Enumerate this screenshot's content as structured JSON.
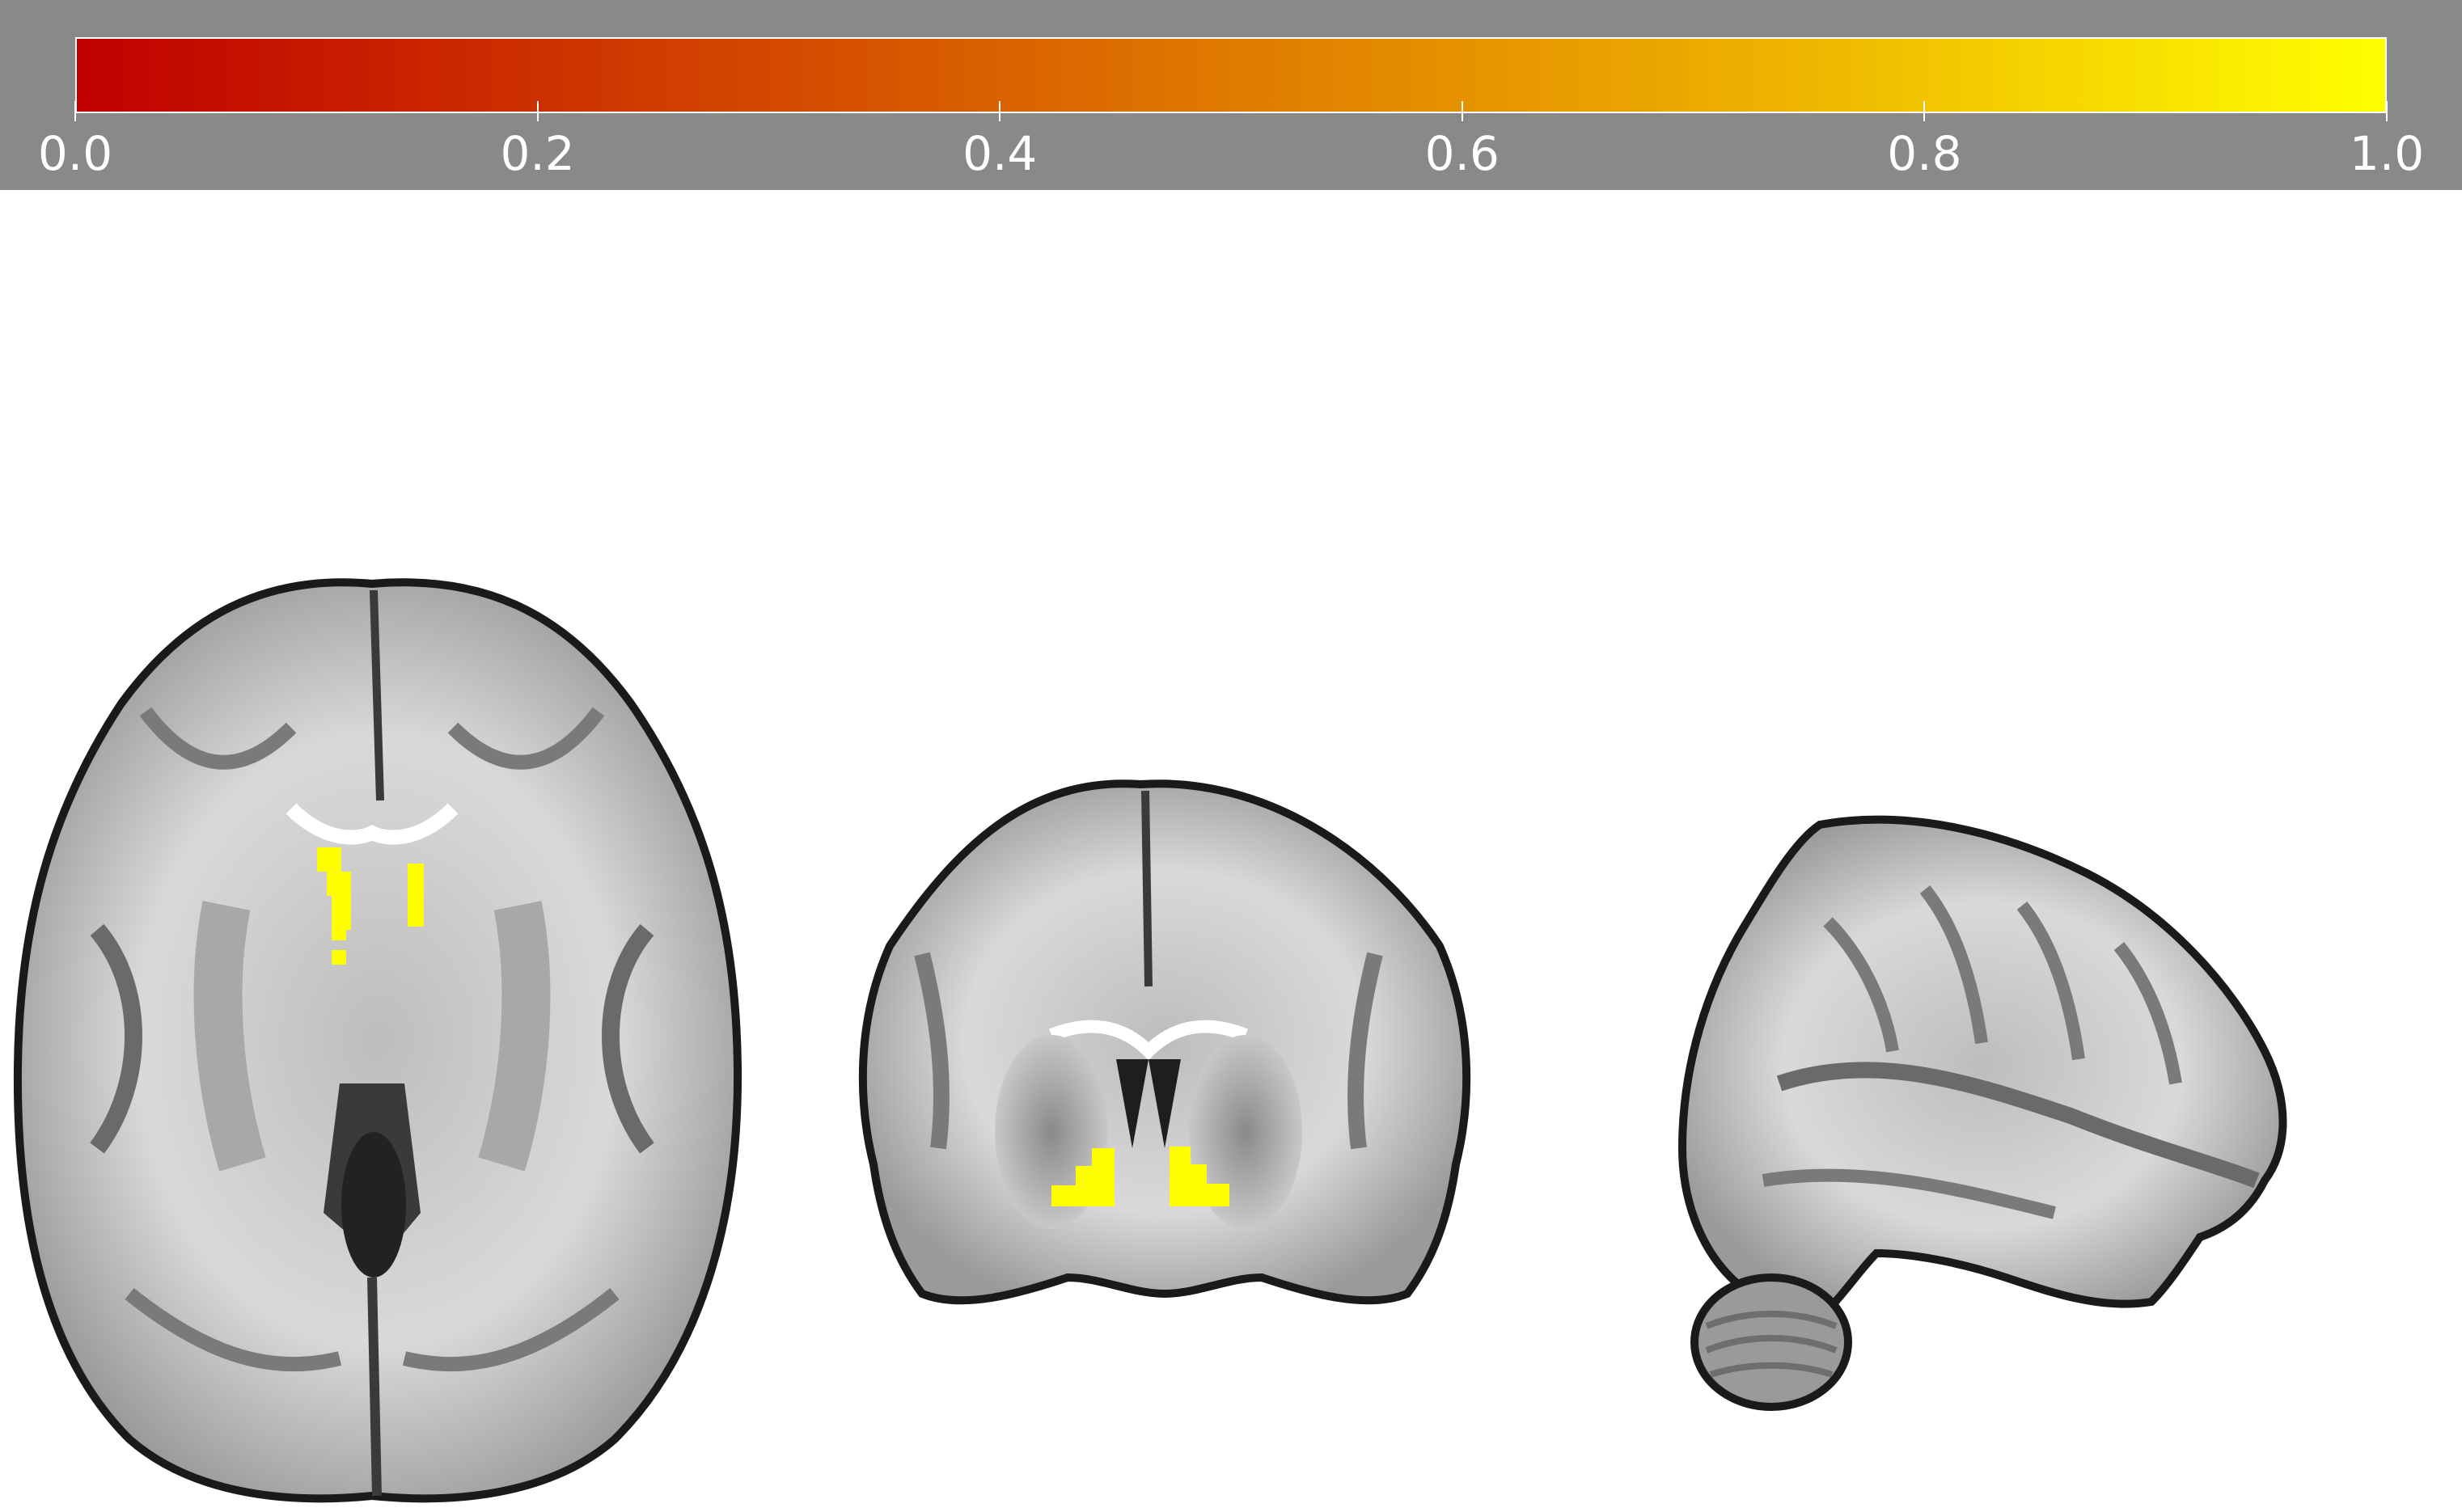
{
  "colorbar": {
    "min": 0.0,
    "max": 1.0,
    "colors": [
      "#c00000",
      "#d03c00",
      "#e07a00",
      "#eeb600",
      "#ffff00"
    ],
    "ticks": [
      {
        "value": 0.0,
        "label": "0.0"
      },
      {
        "value": 0.2,
        "label": "0.2"
      },
      {
        "value": 0.4,
        "label": "0.4"
      },
      {
        "value": 0.6,
        "label": "0.6"
      },
      {
        "value": 0.8,
        "label": "0.8"
      },
      {
        "value": 1.0,
        "label": "1.0"
      }
    ]
  },
  "panel_background": "#898989",
  "overlay_color": "#ffff00",
  "views": [
    "axial",
    "coronal",
    "sagittal"
  ]
}
